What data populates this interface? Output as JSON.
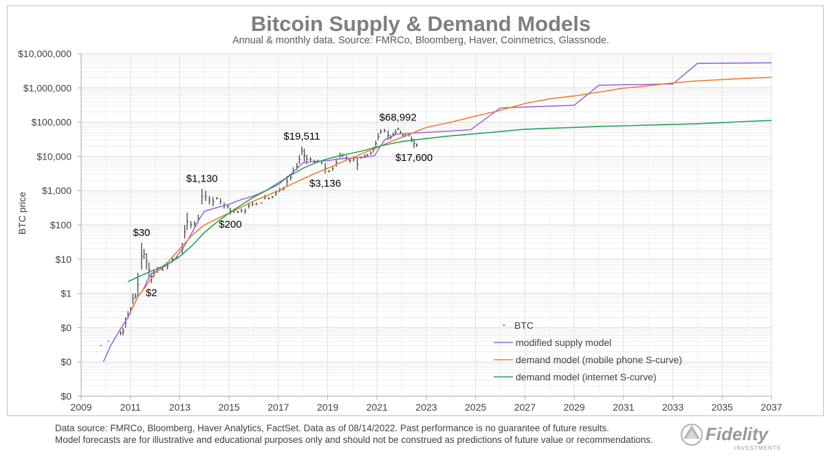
{
  "chart_data": {
    "type": "line",
    "title": "Bitcoin Supply & Demand Models",
    "subtitle": "Annual & monthly data.  Source: FMRCo, Bloomberg, Haver, Coinmetrics, Glassnode.",
    "ylabel": "BTC price",
    "xlabel": "",
    "y_scale": "log",
    "ylim": [
      0.01,
      10000000
    ],
    "xlim": [
      2009,
      2037
    ],
    "y_ticks": [
      {
        "value": 0.01,
        "label": "$0"
      },
      {
        "value": 0.1,
        "label": "$0"
      },
      {
        "value": 1,
        "label": "$1"
      },
      {
        "value": 10,
        "label": "$10"
      },
      {
        "value": 100,
        "label": "$100"
      },
      {
        "value": 1000,
        "label": "$1,000"
      },
      {
        "value": 10000,
        "label": "$10,000"
      },
      {
        "value": 100000,
        "label": "$100,000"
      },
      {
        "value": 1000000,
        "label": "$1,000,000"
      },
      {
        "value": 10000000,
        "label": "$10,000,000"
      }
    ],
    "y_axis_bottom_label": "$0",
    "x_ticks": [
      "2009",
      "2011",
      "2013",
      "2015",
      "2017",
      "2019",
      "2021",
      "2023",
      "2025",
      "2027",
      "2029",
      "2031",
      "2033",
      "2035",
      "2037"
    ],
    "grid": true,
    "legend_position": "bottom-right",
    "series": [
      {
        "name": "BTC",
        "kind": "monthly-range-bars",
        "color": "#404040",
        "points": [
          [
            2010.6,
            0.06,
            0.08
          ],
          [
            2010.7,
            0.06,
            0.1
          ],
          [
            2010.8,
            0.1,
            0.2
          ],
          [
            2010.9,
            0.18,
            0.3
          ],
          [
            2011.0,
            0.25,
            0.4
          ],
          [
            2011.1,
            0.5,
            1.0
          ],
          [
            2011.2,
            0.7,
            1.0
          ],
          [
            2011.3,
            0.8,
            4.0
          ],
          [
            2011.45,
            5.0,
            30.0
          ],
          [
            2011.55,
            10.0,
            20.0
          ],
          [
            2011.65,
            5.0,
            15.0
          ],
          [
            2011.75,
            3.0,
            8.0
          ],
          [
            2011.85,
            2.0,
            4.0
          ],
          [
            2011.95,
            3.0,
            5.0
          ],
          [
            2012.1,
            4.0,
            6.0
          ],
          [
            2012.3,
            4.5,
            5.5
          ],
          [
            2012.5,
            5.0,
            8.0
          ],
          [
            2012.7,
            8.0,
            12.0
          ],
          [
            2012.9,
            10.0,
            13.0
          ],
          [
            2013.1,
            13.0,
            30.0
          ],
          [
            2013.2,
            40.0,
            100.0
          ],
          [
            2013.3,
            70.0,
            230.0
          ],
          [
            2013.45,
            80.0,
            130.0
          ],
          [
            2013.6,
            90.0,
            130.0
          ],
          [
            2013.75,
            120.0,
            200.0
          ],
          [
            2013.9,
            400.0,
            1130.0
          ],
          [
            2014.05,
            500.0,
            1000.0
          ],
          [
            2014.2,
            400.0,
            700.0
          ],
          [
            2014.35,
            350.0,
            650.0
          ],
          [
            2014.5,
            550.0,
            650.0
          ],
          [
            2014.65,
            400.0,
            600.0
          ],
          [
            2014.8,
            300.0,
            450.0
          ],
          [
            2014.95,
            300.0,
            400.0
          ],
          [
            2015.05,
            200.0,
            320.0
          ],
          [
            2015.2,
            220.0,
            300.0
          ],
          [
            2015.35,
            220.0,
            260.0
          ],
          [
            2015.5,
            230.0,
            300.0
          ],
          [
            2015.65,
            210.0,
            300.0
          ],
          [
            2015.8,
            300.0,
            450.0
          ],
          [
            2015.95,
            350.0,
            460.0
          ],
          [
            2016.1,
            370.0,
            450.0
          ],
          [
            2016.3,
            420.0,
            460.0
          ],
          [
            2016.45,
            550.0,
            750.0
          ],
          [
            2016.6,
            550.0,
            650.0
          ],
          [
            2016.75,
            600.0,
            700.0
          ],
          [
            2016.9,
            700.0,
            1000.0
          ],
          [
            2017.05,
            900.0,
            1200.0
          ],
          [
            2017.2,
            1000.0,
            1300.0
          ],
          [
            2017.35,
            1300.0,
            2700.0
          ],
          [
            2017.5,
            2000.0,
            3000.0
          ],
          [
            2017.6,
            3000.0,
            4800.0
          ],
          [
            2017.75,
            4000.0,
            6400.0
          ],
          [
            2017.85,
            6000.0,
            11000.0
          ],
          [
            2017.95,
            11000.0,
            19511.0
          ],
          [
            2018.05,
            7000.0,
            17000.0
          ],
          [
            2018.15,
            6000.0,
            11000.0
          ],
          [
            2018.3,
            7000.0,
            9500.0
          ],
          [
            2018.45,
            6000.0,
            8000.0
          ],
          [
            2018.6,
            6500.0,
            8000.0
          ],
          [
            2018.75,
            6000.0,
            7000.0
          ],
          [
            2018.9,
            3136.0,
            6500.0
          ],
          [
            2019.05,
            3400.0,
            4000.0
          ],
          [
            2019.2,
            3800.0,
            5200.0
          ],
          [
            2019.35,
            5000.0,
            8700.0
          ],
          [
            2019.5,
            9000.0,
            13000.0
          ],
          [
            2019.6,
            9500.0,
            12000.0
          ],
          [
            2019.75,
            8000.0,
            10500.0
          ],
          [
            2019.9,
            6500.0,
            9000.0
          ],
          [
            2020.05,
            7000.0,
            10000.0
          ],
          [
            2020.2,
            4000.0,
            9000.0
          ],
          [
            2020.35,
            8500.0,
            10000.0
          ],
          [
            2020.5,
            9000.0,
            11500.0
          ],
          [
            2020.6,
            10000.0,
            12000.0
          ],
          [
            2020.75,
            11000.0,
            14000.0
          ],
          [
            2020.85,
            13000.0,
            19000.0
          ],
          [
            2020.95,
            19000.0,
            29000.0
          ],
          [
            2021.05,
            30000.0,
            48000.0
          ],
          [
            2021.15,
            45000.0,
            61000.0
          ],
          [
            2021.3,
            50000.0,
            64000.0
          ],
          [
            2021.45,
            30000.0,
            58000.0
          ],
          [
            2021.55,
            31000.0,
            42000.0
          ],
          [
            2021.65,
            40000.0,
            50000.0
          ],
          [
            2021.75,
            42000.0,
            62000.0
          ],
          [
            2021.85,
            58000.0,
            68992.0
          ],
          [
            2021.95,
            46000.0,
            57000.0
          ],
          [
            2022.05,
            35000.0,
            47000.0
          ],
          [
            2022.15,
            37000.0,
            45000.0
          ],
          [
            2022.3,
            38000.0,
            48000.0
          ],
          [
            2022.4,
            26000.0,
            38000.0
          ],
          [
            2022.5,
            17600.0,
            32000.0
          ],
          [
            2022.6,
            19000.0,
            24000.0
          ]
        ],
        "early_dots": [
          [
            2009.8,
            0.03
          ],
          [
            2010.1,
            0.04
          ]
        ]
      },
      {
        "name": "modified supply model",
        "color": "#9966dd",
        "points": [
          [
            2009.9,
            0.01
          ],
          [
            2010.2,
            0.03
          ],
          [
            2010.5,
            0.07
          ],
          [
            2010.7,
            0.12
          ],
          [
            2010.9,
            0.2
          ],
          [
            2011.1,
            0.4
          ],
          [
            2011.3,
            0.8
          ],
          [
            2011.5,
            1.2
          ],
          [
            2011.7,
            2.5
          ],
          [
            2011.9,
            4.0
          ],
          [
            2012.2,
            5.0
          ],
          [
            2012.5,
            7.0
          ],
          [
            2012.8,
            10.0
          ],
          [
            2013.2,
            25.0
          ],
          [
            2013.5,
            60.0
          ],
          [
            2013.8,
            150.0
          ],
          [
            2014.0,
            250.0
          ],
          [
            2014.5,
            320.0
          ],
          [
            2015.0,
            400.0
          ],
          [
            2015.5,
            550.0
          ],
          [
            2016.0,
            700.0
          ],
          [
            2016.5,
            1000.0
          ],
          [
            2017.0,
            1500.0
          ],
          [
            2017.5,
            3000.0
          ],
          [
            2018.0,
            6500.0
          ],
          [
            2018.5,
            7200.0
          ],
          [
            2019.0,
            7500.0
          ],
          [
            2019.5,
            8500.0
          ],
          [
            2020.0,
            9000.0
          ],
          [
            2020.5,
            9500.0
          ],
          [
            2020.9,
            10500.0
          ],
          [
            2021.3,
            30000.0
          ],
          [
            2021.8,
            45000.0
          ],
          [
            2022.5,
            48000.0
          ],
          [
            2024.0,
            55000.0
          ],
          [
            2024.8,
            60000.0
          ],
          [
            2026.0,
            260000.0
          ],
          [
            2029.0,
            310000.0
          ],
          [
            2030.0,
            1200000.0
          ],
          [
            2033.0,
            1300000.0
          ],
          [
            2034.0,
            5200000.0
          ],
          [
            2037.0,
            5400000.0
          ]
        ]
      },
      {
        "name": "demand model (mobile phone S-curve)",
        "color": "#ed7d31",
        "points": [
          [
            2011.0,
            0.3
          ],
          [
            2011.3,
            0.8
          ],
          [
            2011.6,
            1.5
          ],
          [
            2012.0,
            4.0
          ],
          [
            2012.5,
            8.0
          ],
          [
            2013.0,
            20.0
          ],
          [
            2013.5,
            50.0
          ],
          [
            2014.0,
            100.0
          ],
          [
            2014.5,
            150.0
          ],
          [
            2015.0,
            220.0
          ],
          [
            2015.5,
            330.0
          ],
          [
            2016.0,
            500.0
          ],
          [
            2016.5,
            700.0
          ],
          [
            2017.0,
            1000.0
          ],
          [
            2017.5,
            1500.0
          ],
          [
            2018.0,
            2200.0
          ],
          [
            2018.5,
            3200.0
          ],
          [
            2019.0,
            4500.0
          ],
          [
            2019.5,
            6500.0
          ],
          [
            2020.0,
            9000.0
          ],
          [
            2020.5,
            13000.0
          ],
          [
            2021.0,
            18000.0
          ],
          [
            2021.5,
            26000.0
          ],
          [
            2022.0,
            36000.0
          ],
          [
            2022.5,
            50000.0
          ],
          [
            2023.0,
            70000.0
          ],
          [
            2024.0,
            100000.0
          ],
          [
            2025.0,
            150000.0
          ],
          [
            2026.0,
            220000.0
          ],
          [
            2027.0,
            350000.0
          ],
          [
            2028.0,
            480000.0
          ],
          [
            2029.0,
            580000.0
          ],
          [
            2030.0,
            750000.0
          ],
          [
            2031.0,
            980000.0
          ],
          [
            2032.0,
            1150000.0
          ],
          [
            2033.0,
            1400000.0
          ],
          [
            2034.0,
            1600000.0
          ],
          [
            2035.0,
            1750000.0
          ],
          [
            2036.0,
            1900000.0
          ],
          [
            2037.0,
            2050000.0
          ]
        ]
      },
      {
        "name": "demand model (internet S-curve)",
        "color": "#22a355",
        "points": [
          [
            2010.9,
            2.2
          ],
          [
            2011.5,
            3.5
          ],
          [
            2012.0,
            5.0
          ],
          [
            2012.5,
            7.0
          ],
          [
            2013.0,
            12.0
          ],
          [
            2013.5,
            25.0
          ],
          [
            2014.0,
            60.0
          ],
          [
            2014.5,
            120.0
          ],
          [
            2015.0,
            220.0
          ],
          [
            2015.5,
            380.0
          ],
          [
            2016.0,
            650.0
          ],
          [
            2016.5,
            1000.0
          ],
          [
            2017.0,
            1700.0
          ],
          [
            2017.5,
            2800.0
          ],
          [
            2018.0,
            4500.0
          ],
          [
            2018.5,
            6500.0
          ],
          [
            2019.0,
            8500.0
          ],
          [
            2019.5,
            10500.0
          ],
          [
            2020.0,
            12500.0
          ],
          [
            2020.5,
            15000.0
          ],
          [
            2021.0,
            19000.0
          ],
          [
            2021.5,
            23000.0
          ],
          [
            2022.0,
            27000.0
          ],
          [
            2022.5,
            30000.0
          ],
          [
            2023.0,
            33000.0
          ],
          [
            2024.0,
            40000.0
          ],
          [
            2025.0,
            46000.0
          ],
          [
            2026.0,
            53000.0
          ],
          [
            2027.0,
            62000.0
          ],
          [
            2028.0,
            66000.0
          ],
          [
            2029.0,
            70000.0
          ],
          [
            2030.0,
            75000.0
          ],
          [
            2031.0,
            78000.0
          ],
          [
            2032.0,
            82000.0
          ],
          [
            2033.0,
            86000.0
          ],
          [
            2034.0,
            90000.0
          ],
          [
            2035.0,
            97000.0
          ],
          [
            2036.0,
            105000.0
          ],
          [
            2037.0,
            112000.0
          ]
        ]
      }
    ],
    "annotations": [
      {
        "text": "$30",
        "x": 2011.45,
        "y": 30,
        "anchor": "above"
      },
      {
        "text": "$2",
        "x": 2011.85,
        "y": 2,
        "anchor": "below"
      },
      {
        "text": "$1,130",
        "x": 2013.9,
        "y": 1130,
        "anchor": "above"
      },
      {
        "text": "$200",
        "x": 2015.05,
        "y": 200,
        "anchor": "below"
      },
      {
        "text": "$19,511",
        "x": 2017.95,
        "y": 19511,
        "anchor": "above"
      },
      {
        "text": "$3,136",
        "x": 2018.9,
        "y": 3136,
        "anchor": "below"
      },
      {
        "text": "$68,992",
        "x": 2021.85,
        "y": 68992,
        "anchor": "above"
      },
      {
        "text": "$17,600",
        "x": 2022.5,
        "y": 17600,
        "anchor": "below"
      }
    ]
  },
  "footer": {
    "line1": "Data source: FMRCo, Bloomberg, Haver Analytics, FactSet. Data as of 08/14/2022. Past performance is no guarantee of future results.",
    "line2": "Model forecasts are for illustrative and educational purposes only and should not be construed as predictions of future value or recommendations."
  },
  "logo": {
    "brand": "Fidelity",
    "tagline": "INVESTMENTS",
    "color": "#9a9a9a"
  }
}
